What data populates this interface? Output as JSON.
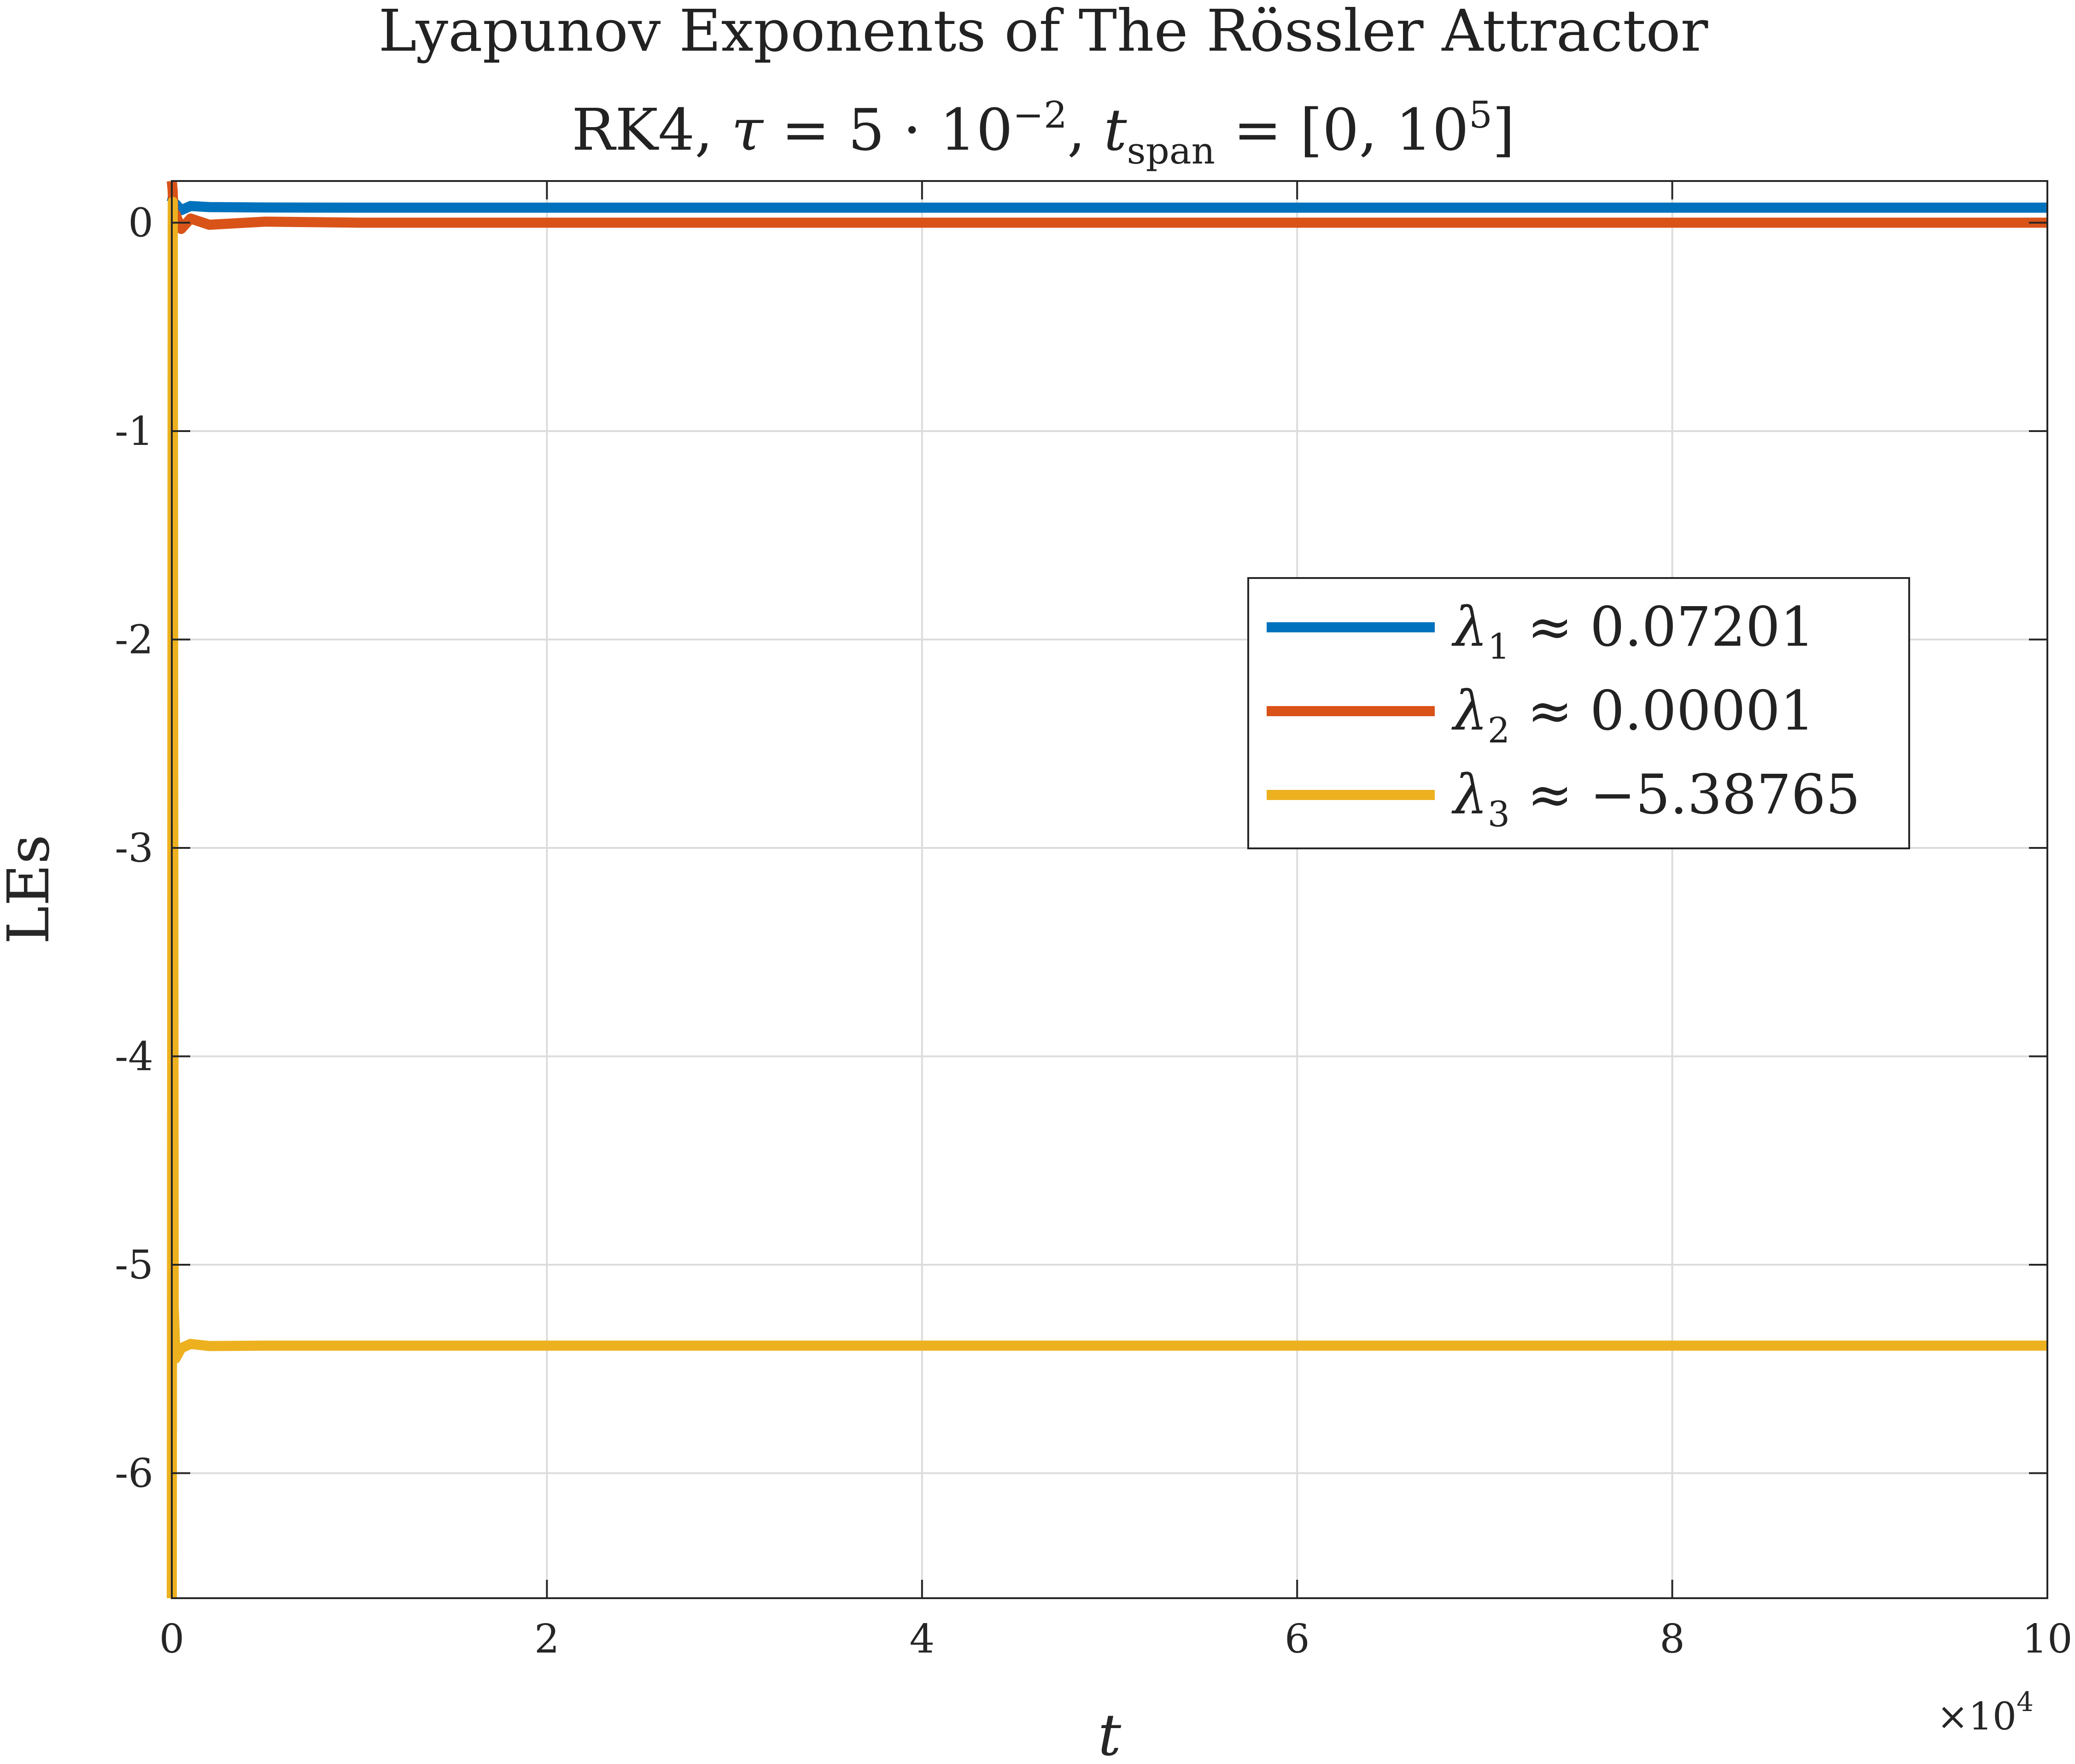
{
  "chart_data": {
    "type": "line",
    "title": "Lyapunov Exponents of The Rössler Attractor",
    "subtitle": {
      "prefix": "RK4, ",
      "tau_symbol": "τ",
      "tau_eq": " = 5 · 10",
      "tau_exp": "−2",
      "sep": ",  ",
      "t_symbol": "t",
      "t_sub": "span",
      "span_text": " = [0,  10",
      "span_exp": "5",
      "span_close": "]"
    },
    "xlabel": "t",
    "ylabel": "LEs",
    "x_exponent": {
      "base": "×10",
      "power": "4"
    },
    "xlim": [
      0,
      10
    ],
    "ylim": [
      -6.6,
      0.2
    ],
    "xticks": [
      0,
      2,
      4,
      6,
      8,
      10
    ],
    "xtick_labels": [
      "0",
      "2",
      "4",
      "6",
      "8",
      "10"
    ],
    "yticks": [
      0,
      -1,
      -2,
      -3,
      -4,
      -5,
      -6
    ],
    "ytick_labels": [
      "0",
      "-1",
      "-2",
      "-3",
      "-4",
      "-5",
      "-6"
    ],
    "grid": true,
    "legend_position": "center-right",
    "series": [
      {
        "name": "λ1 ≈ 0.07201",
        "legend": {
          "symbol": "λ",
          "sub": "1",
          "text": " ≈ 0.07201"
        },
        "color": "#0072BD",
        "x": [
          0,
          0.005,
          0.01,
          0.02,
          0.05,
          0.1,
          0.2,
          0.5,
          1,
          2,
          4,
          6,
          8,
          10
        ],
        "y": [
          0.1,
          0.12,
          0.05,
          0.09,
          0.06,
          0.08,
          0.075,
          0.073,
          0.072,
          0.072,
          0.072,
          0.072,
          0.072,
          0.072
        ]
      },
      {
        "name": "λ2 ≈ 0.00001",
        "legend": {
          "symbol": "λ",
          "sub": "2",
          "text": " ≈ 0.00001"
        },
        "color": "#D95319",
        "x": [
          0,
          0.005,
          0.01,
          0.02,
          0.05,
          0.1,
          0.2,
          0.5,
          1,
          2,
          4,
          6,
          8,
          10
        ],
        "y": [
          0.2,
          0.15,
          -0.02,
          0.04,
          -0.03,
          0.02,
          -0.01,
          0.005,
          0.0,
          0.0,
          0.0,
          0.0,
          0.0,
          0.0
        ]
      },
      {
        "name": "λ3 ≈ −5.38765",
        "legend": {
          "symbol": "λ",
          "sub": "3",
          "text": " ≈ −5.38765"
        },
        "color": "#EDB120",
        "x": [
          0,
          0.005,
          0.01,
          0.02,
          0.05,
          0.1,
          0.2,
          0.5,
          1,
          2,
          4,
          6,
          8,
          10
        ],
        "y": [
          -6.6,
          0.1,
          -5.2,
          -5.45,
          -5.4,
          -5.38,
          -5.39,
          -5.388,
          -5.388,
          -5.388,
          -5.388,
          -5.388,
          -5.388,
          -5.388
        ]
      }
    ]
  }
}
